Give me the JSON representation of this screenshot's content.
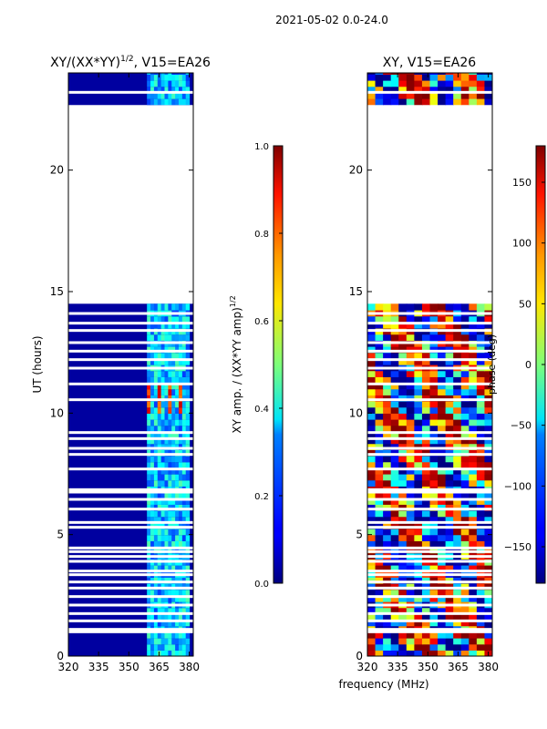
{
  "figure": {
    "suptitle": "2021-05-02 0.0-24.0",
    "xlabel": "frequency (MHz)"
  },
  "chart_data": [
    {
      "type": "heatmap",
      "title_main": "XY/(XX*YY)",
      "title_exp": "1/2",
      "title_suffix": ", V15=EA26",
      "ylabel": "UT (hours)",
      "xlim": [
        320,
        382
      ],
      "ylim": [
        0,
        24
      ],
      "xticks": [
        320,
        335,
        350,
        365,
        380
      ],
      "yticks": [
        0,
        5,
        10,
        15,
        20
      ],
      "data_bands_hours": [
        [
          0,
          14.5
        ],
        [
          22.7,
          24
        ]
      ],
      "bright_channel_range_mhz": [
        359,
        380
      ],
      "colorbar": {
        "label_main": "XY amp. / (XX*YY amp)",
        "label_exp": "1/2",
        "range": [
          0.0,
          1.0
        ],
        "ticks": [
          "0.0",
          "0.2",
          "0.4",
          "0.6",
          "0.8",
          "1.0"
        ],
        "tick_values": [
          0.0,
          0.2,
          0.4,
          0.6,
          0.8,
          1.0
        ],
        "colormap": "jet"
      }
    },
    {
      "type": "heatmap",
      "title": "XY, V15=EA26",
      "xlim": [
        320,
        382
      ],
      "ylim": [
        0,
        24
      ],
      "xticks": [
        320,
        335,
        350,
        365,
        380
      ],
      "yticks": [
        0,
        5,
        10,
        15,
        20
      ],
      "data_bands_hours": [
        [
          0,
          14.5
        ],
        [
          22.7,
          24
        ]
      ],
      "colorbar": {
        "label": "phase (deg)",
        "range": [
          -180,
          180
        ],
        "ticks": [
          "150",
          "100",
          "50",
          "0",
          "−50",
          "−100",
          "−150"
        ],
        "tick_values": [
          150,
          100,
          50,
          0,
          -50,
          -100,
          -150
        ],
        "colormap": "jet"
      }
    }
  ]
}
